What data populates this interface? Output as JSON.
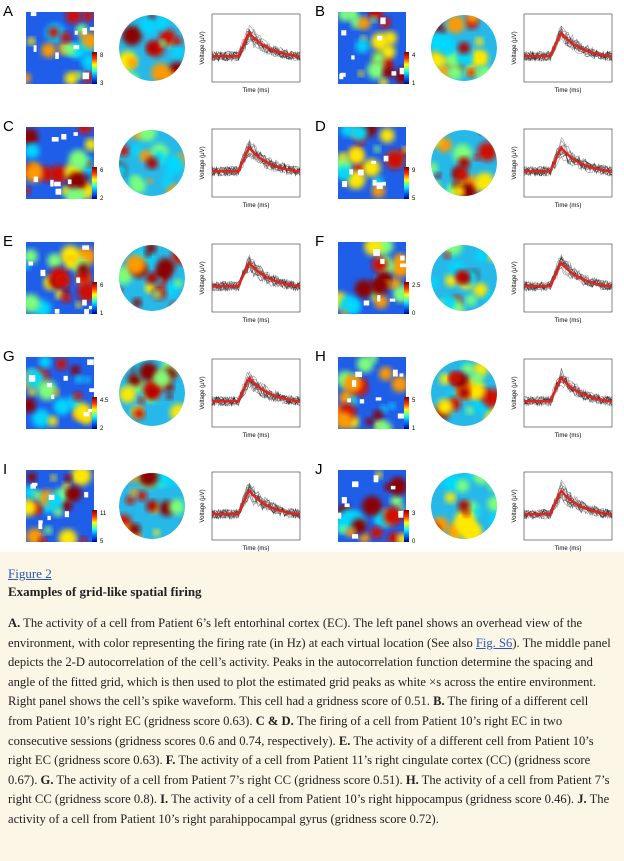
{
  "figure": {
    "x_label": "Time (ms)",
    "y_label": "Voltage (μV)",
    "panels": [
      {
        "label": "A",
        "colorbar": [
          "8",
          "3"
        ]
      },
      {
        "label": "B",
        "colorbar": [
          "4",
          "1"
        ]
      },
      {
        "label": "C",
        "colorbar": [
          "6",
          "2"
        ]
      },
      {
        "label": "D",
        "colorbar": [
          "9",
          "5"
        ]
      },
      {
        "label": "E",
        "colorbar": [
          "6",
          "1"
        ]
      },
      {
        "label": "F",
        "colorbar": [
          "2.5",
          "0"
        ]
      },
      {
        "label": "G",
        "colorbar": [
          "4.5",
          "2"
        ]
      },
      {
        "label": "H",
        "colorbar": [
          "5",
          "1"
        ]
      },
      {
        "label": "I",
        "colorbar": [
          "11",
          "5"
        ]
      },
      {
        "label": "J",
        "colorbar": [
          "3",
          "0"
        ]
      }
    ]
  },
  "caption": {
    "link": "Figure 2",
    "title": "Examples of grid-like spatial firing",
    "paragraph": [
      {
        "text": "A.",
        "bold": true
      },
      {
        "text": " The activity of a cell from Patient 6’s left entorhinal cortex (EC). The left panel shows an overhead view of the environment, with color representing the firing rate (in Hz) at each virtual location (See also "
      },
      {
        "text": "Fig. S6",
        "link": true
      },
      {
        "text": "). The middle panel depicts the 2-D autocorrelation of the cell’s activity. Peaks in the autocorrelation function determine the spacing and angle of the fitted grid, which is then used to plot the estimated grid peaks as white ×s across the entire environment. Right panel shows the cell’s spike waveform. This cell had a gridness score of 0.51. "
      },
      {
        "text": "B.",
        "bold": true
      },
      {
        "text": " The firing of a different cell from Patient 10’s right EC (gridness score 0.63). "
      },
      {
        "text": "C & D.",
        "bold": true
      },
      {
        "text": " The firing of a cell from Patient 10’s right EC in two consecutive sessions (gridness scores 0.6 and 0.74, respectively). "
      },
      {
        "text": "E.",
        "bold": true
      },
      {
        "text": " The activity of a different cell from Patient 10’s right EC (gridness score 0.63). "
      },
      {
        "text": "F.",
        "bold": true
      },
      {
        "text": " The activity of a cell from Patient 11’s right cingulate cortex (CC) (gridness score 0.67). "
      },
      {
        "text": "G.",
        "bold": true
      },
      {
        "text": " The activity of a cell from Patient 7’s right CC (gridness score 0.51). "
      },
      {
        "text": "H.",
        "bold": true
      },
      {
        "text": " The activity of a cell from Patient 7’s right CC (gridness score 0.8). "
      },
      {
        "text": "I.",
        "bold": true
      },
      {
        "text": " The activity of a cell from Patient 10’s right hippocampus (gridness score 0.46). "
      },
      {
        "text": "J.",
        "bold": true
      },
      {
        "text": " The activity of a cell from Patient 10’s right parahippocampal gyrus (gridness score 0.72)."
      }
    ]
  }
}
